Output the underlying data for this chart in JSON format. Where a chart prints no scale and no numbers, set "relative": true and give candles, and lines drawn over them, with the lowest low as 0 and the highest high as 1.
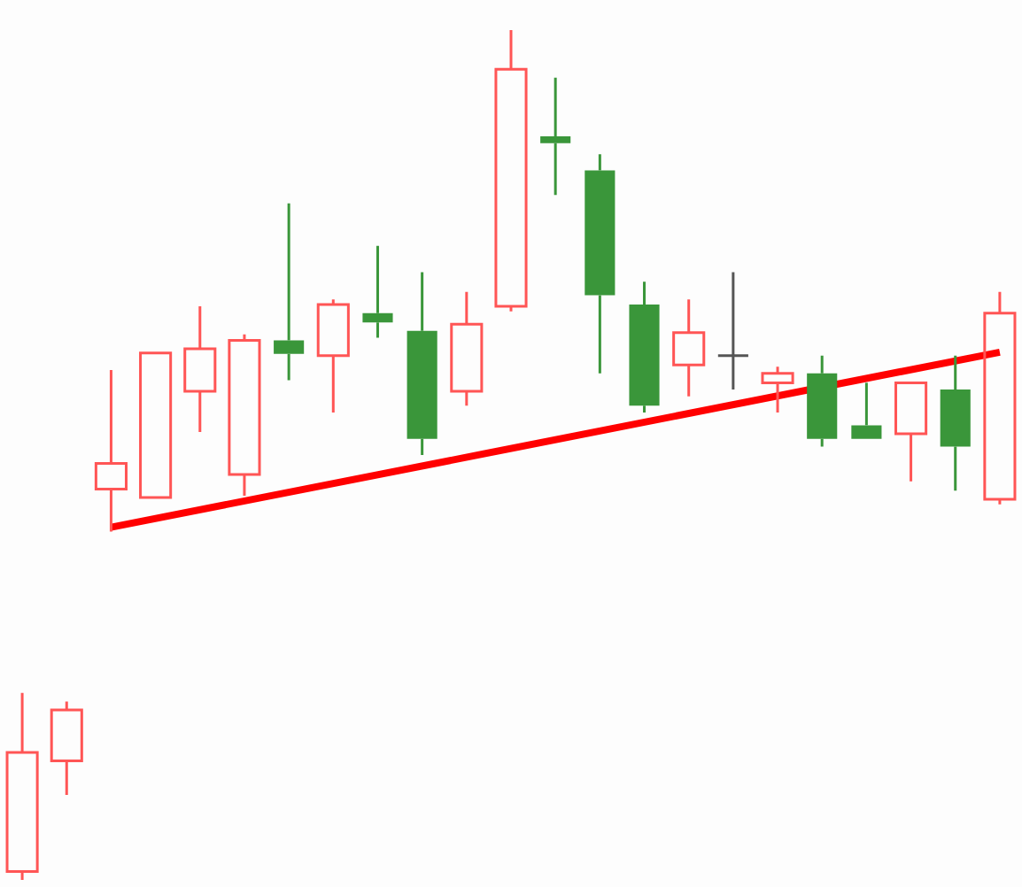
{
  "chart_data": {
    "type": "candlestick",
    "relative": true,
    "categories": [
      null,
      null,
      null,
      null,
      null,
      null,
      null,
      null,
      null,
      null,
      null,
      null,
      null,
      null,
      null,
      null,
      null,
      null,
      null,
      null,
      null,
      null,
      null
    ],
    "ohlc": [
      [
        0.01,
        0.22,
        0,
        0.15
      ],
      [
        0.14,
        0.21,
        0.1,
        0.2
      ],
      [
        0.46,
        0.6,
        0.41,
        0.49
      ],
      [
        0.45,
        0.62,
        0.45,
        0.62
      ],
      [
        0.575,
        0.675,
        0.527,
        0.625
      ],
      [
        0.477,
        0.642,
        0.452,
        0.635
      ],
      [
        0.635,
        0.796,
        0.588,
        0.619
      ],
      [
        0.617,
        0.683,
        0.55,
        0.677
      ],
      [
        0.667,
        0.746,
        0.638,
        0.656
      ],
      [
        0.646,
        0.715,
        0.5,
        0.519
      ],
      [
        0.575,
        0.692,
        0.558,
        0.654
      ],
      [
        0.675,
        1,
        0.669,
        0.954
      ],
      [
        0.875,
        0.944,
        0.806,
        0.867
      ],
      [
        0.835,
        0.854,
        0.596,
        0.688
      ],
      [
        0.677,
        0.704,
        0.55,
        0.558
      ],
      [
        0.606,
        0.683,
        0.569,
        0.644
      ],
      [
        0.617,
        0.715,
        0.577,
        0.617
      ],
      [
        0.585,
        0.604,
        0.55,
        0.596
      ],
      [
        0.596,
        0.617,
        0.51,
        0.519
      ],
      [
        0.535,
        0.585,
        0.519,
        0.519
      ],
      [
        0.525,
        0.585,
        0.469,
        0.585
      ],
      [
        0.577,
        0.617,
        0.458,
        0.51
      ],
      [
        0.448,
        0.692,
        0.442,
        0.667
      ]
    ],
    "colors": [
      "#ff5555",
      "#ff5555",
      "#ff5555",
      "#ff5555",
      "#ff5555",
      "#ff5555",
      "#3a963a",
      "#ff5555",
      "#3a963a",
      "#3a963a",
      "#ff5555",
      "#ff5555",
      "#3a963a",
      "#3a963a",
      "#3a963a",
      "#ff5555",
      "#555555",
      "#ff5555",
      "#3a963a",
      "#3a963a",
      "#ff5555",
      "#3a963a",
      "#ff5555"
    ],
    "series": [
      {
        "type": "line",
        "color": "#ff0000",
        "values": [
          null,
          null,
          0.415,
          null,
          null,
          null,
          null,
          null,
          null,
          null,
          null,
          null,
          null,
          null,
          null,
          null,
          null,
          null,
          null,
          null,
          null,
          null,
          0.621
        ]
      }
    ]
  }
}
